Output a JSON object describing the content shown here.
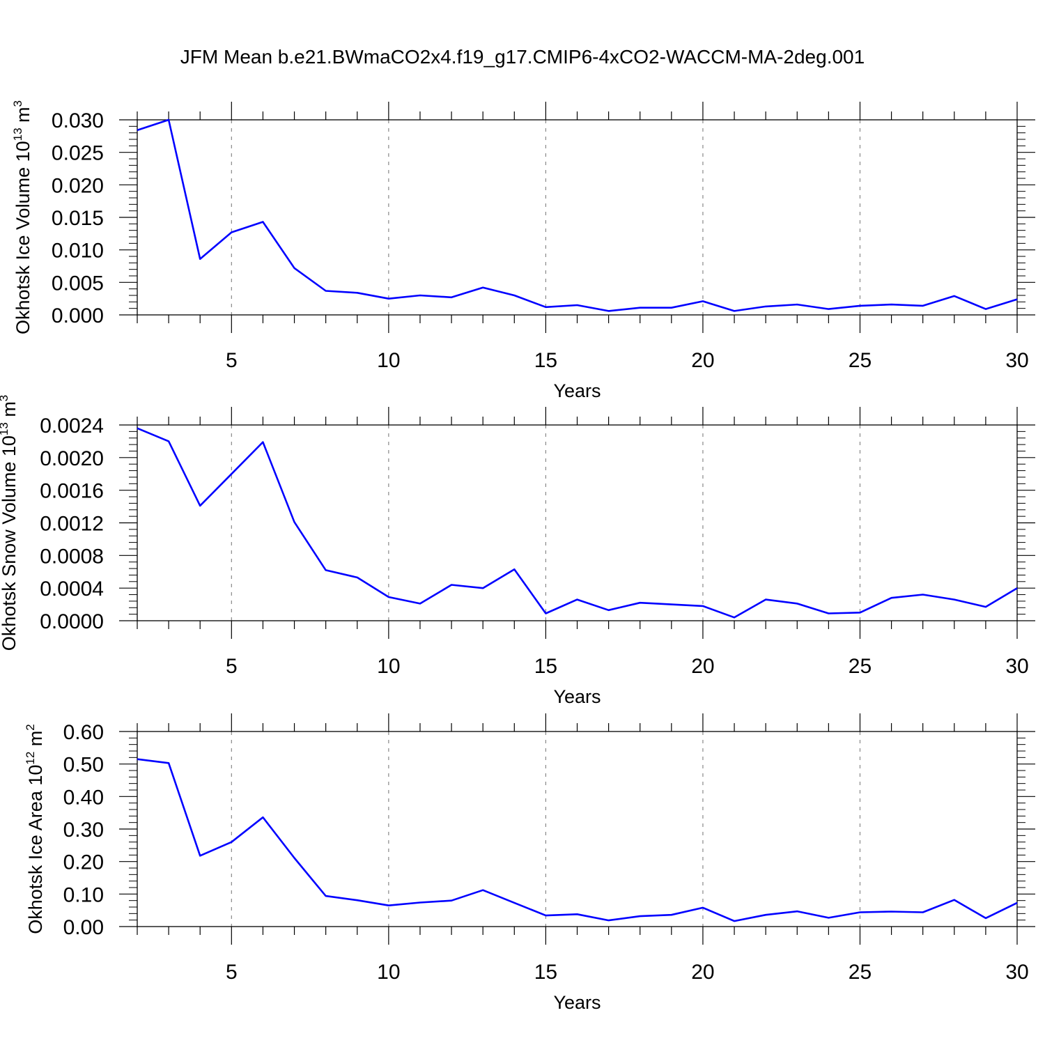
{
  "title": "JFM Mean b.e21.BWmaCO2x4.f19_g17.CMIP6-4xCO2-WACCM-MA-2deg.001",
  "colors": {
    "line": "#0000ff",
    "axis": "#000000",
    "grid": "#888888"
  },
  "chart_data": [
    {
      "type": "line",
      "title": "",
      "xlabel": "Years",
      "ylabel": {
        "text": "Okhotsk Ice Volume 10",
        "sup": "13",
        "unit": " m",
        "unit_sup": "3"
      },
      "xlim": [
        2,
        30
      ],
      "ylim": [
        0,
        0.03
      ],
      "xticks": [
        5,
        10,
        15,
        20,
        25,
        30
      ],
      "yticks": [
        "0.000",
        "0.005",
        "0.010",
        "0.015",
        "0.020",
        "0.025",
        "0.030"
      ],
      "x": [
        2,
        3,
        4,
        5,
        6,
        7,
        8,
        9,
        10,
        11,
        12,
        13,
        14,
        15,
        16,
        17,
        18,
        19,
        20,
        21,
        22,
        23,
        24,
        25,
        26,
        27,
        28,
        29,
        30
      ],
      "values": [
        0.0284,
        0.03,
        0.0086,
        0.0127,
        0.0143,
        0.0072,
        0.0037,
        0.0034,
        0.0025,
        0.003,
        0.0027,
        0.0042,
        0.003,
        0.0012,
        0.0015,
        0.0006,
        0.0011,
        0.0011,
        0.0021,
        0.0006,
        0.0013,
        0.0016,
        0.0009,
        0.0014,
        0.0016,
        0.0014,
        0.0029,
        0.0009,
        0.0024
      ]
    },
    {
      "type": "line",
      "title": "",
      "xlabel": "Years",
      "ylabel": {
        "text": "Okhotsk Snow Volume 10",
        "sup": "13",
        "unit": " m",
        "unit_sup": "3"
      },
      "xlim": [
        2,
        30
      ],
      "ylim": [
        0,
        0.0024
      ],
      "xticks": [
        5,
        10,
        15,
        20,
        25,
        30
      ],
      "yticks": [
        "0.0000",
        "0.0004",
        "0.0008",
        "0.0012",
        "0.0016",
        "0.0020",
        "0.0024"
      ],
      "x": [
        2,
        3,
        4,
        5,
        6,
        7,
        8,
        9,
        10,
        11,
        12,
        13,
        14,
        15,
        16,
        17,
        18,
        19,
        20,
        21,
        22,
        23,
        24,
        25,
        26,
        27,
        28,
        29,
        30
      ],
      "values": [
        0.00236,
        0.0022,
        0.00141,
        0.0018,
        0.00219,
        0.00121,
        0.00062,
        0.00053,
        0.00029,
        0.00021,
        0.00044,
        0.0004,
        0.00063,
        9e-05,
        0.00026,
        0.00013,
        0.00022,
        0.0002,
        0.00018,
        4e-05,
        0.00026,
        0.00021,
        9e-05,
        0.0001,
        0.00028,
        0.00032,
        0.00026,
        0.00017,
        0.0004
      ]
    },
    {
      "type": "line",
      "title": "",
      "xlabel": "Years",
      "ylabel": {
        "text": "Okhotsk Ice Area 10",
        "sup": "12",
        "unit": " m",
        "unit_sup": "2"
      },
      "xlim": [
        2,
        30
      ],
      "ylim": [
        0,
        0.6
      ],
      "xticks": [
        5,
        10,
        15,
        20,
        25,
        30
      ],
      "yticks": [
        "0.00",
        "0.10",
        "0.20",
        "0.30",
        "0.40",
        "0.50",
        "0.60"
      ],
      "x": [
        2,
        3,
        4,
        5,
        6,
        7,
        8,
        9,
        10,
        11,
        12,
        13,
        14,
        15,
        16,
        17,
        18,
        19,
        20,
        21,
        22,
        23,
        24,
        25,
        26,
        27,
        28,
        29,
        30
      ],
      "values": [
        0.515,
        0.503,
        0.218,
        0.26,
        0.336,
        0.211,
        0.094,
        0.081,
        0.065,
        0.074,
        0.08,
        0.112,
        0.073,
        0.034,
        0.038,
        0.019,
        0.032,
        0.036,
        0.058,
        0.017,
        0.036,
        0.047,
        0.027,
        0.044,
        0.046,
        0.044,
        0.082,
        0.026,
        0.073
      ]
    }
  ]
}
